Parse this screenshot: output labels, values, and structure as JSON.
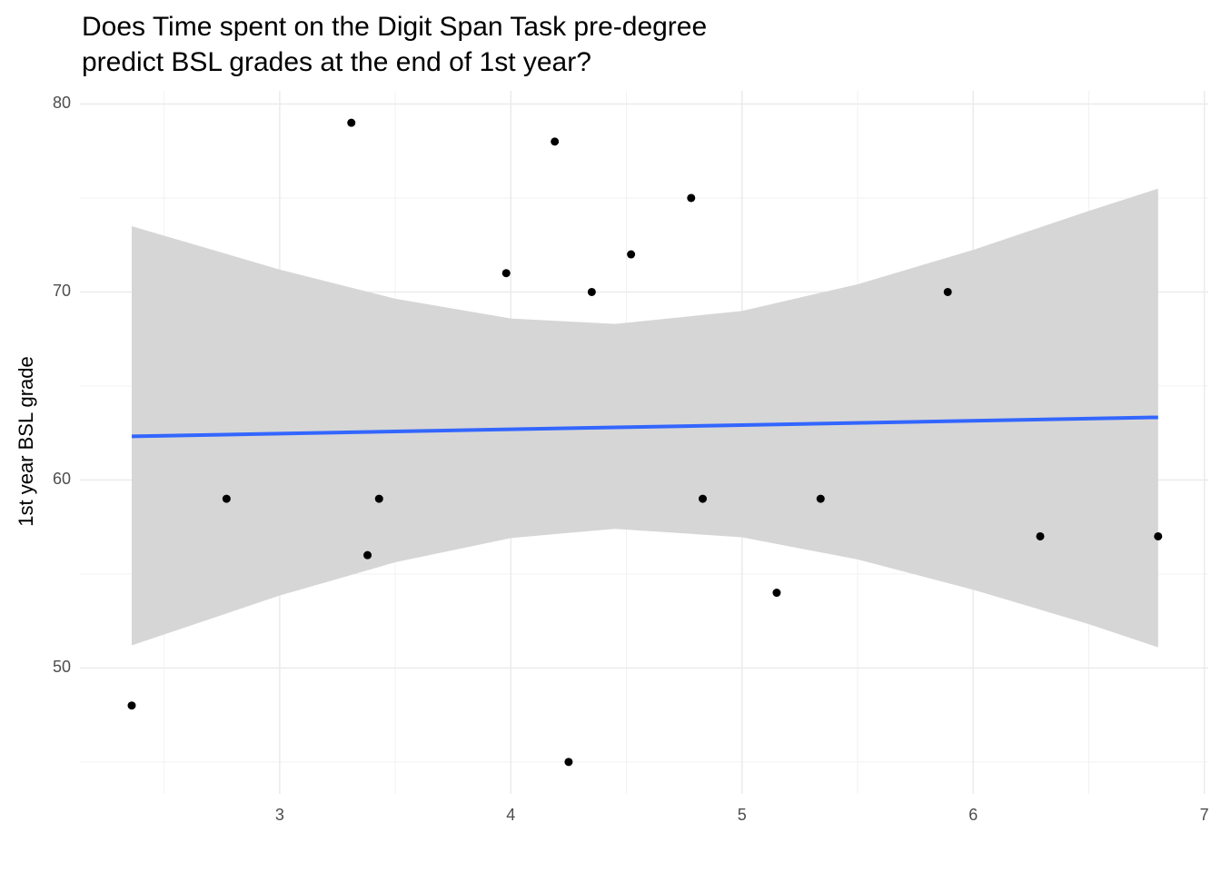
{
  "chart_data": {
    "type": "scatter",
    "title": [
      "Does Time spent on the Digit Span Task pre-degree",
      "predict BSL grades at the end of 1st year?"
    ],
    "y_label": "1st year BSL grade",
    "x": [
      2.36,
      2.77,
      3.31,
      3.38,
      3.43,
      3.98,
      4.19,
      4.25,
      4.35,
      4.52,
      4.78,
      4.83,
      5.15,
      5.34,
      5.89,
      6.29,
      6.8
    ],
    "values": [
      48,
      59,
      79,
      56,
      59,
      71,
      78,
      45,
      70,
      72,
      75,
      59,
      54,
      59,
      70,
      57,
      57
    ],
    "color": "#000000",
    "fit": {
      "x": [
        2.36,
        6.8
      ],
      "values": [
        62.32,
        63.33
      ],
      "color": "#3366FF"
    },
    "band": {
      "x": [
        2.36,
        3.0,
        3.5,
        4.0,
        4.45,
        5.0,
        5.5,
        6.0,
        6.5,
        6.8
      ],
      "upper": [
        73.5,
        71.19,
        69.64,
        68.59,
        68.3,
        68.99,
        70.41,
        72.24,
        74.31,
        75.5
      ],
      "lower": [
        51.2,
        53.85,
        55.62,
        56.91,
        57.4,
        56.95,
        55.77,
        54.16,
        52.33,
        51.1
      ],
      "color": "#d6d6d6"
    },
    "xlim": [
      2.136,
      7.017
    ],
    "ylim": [
      43.3,
      80.7
    ],
    "xticks": [
      3,
      4,
      5,
      6,
      7
    ],
    "yticks": [
      50,
      60,
      70,
      80
    ],
    "x_minor_grid": [
      2.5,
      3.5,
      4.5,
      5.5,
      6.5
    ],
    "y_minor_grid": [
      45,
      55,
      65,
      75
    ],
    "grid": true
  }
}
